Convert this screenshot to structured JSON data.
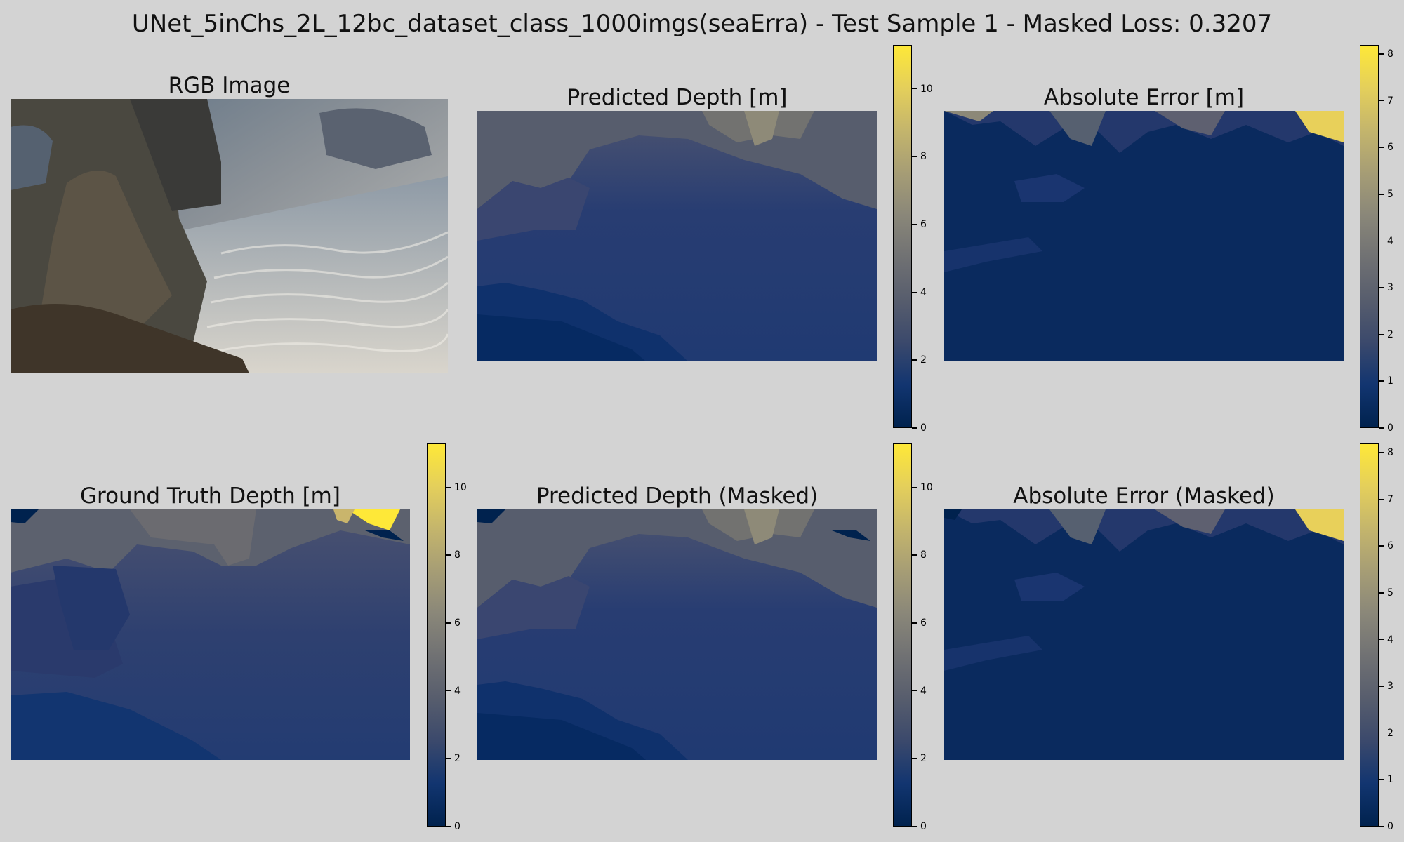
{
  "suptitle": "UNet_5inChs_2L_12bc_dataset_class_1000imgs(seaErra) - Test Sample 1 - Masked Loss: 0.3207",
  "colormap": {
    "name": "cividis",
    "stops": [
      "#00224e",
      "#123570",
      "#3b496c",
      "#575d6d",
      "#707173",
      "#8a8779",
      "#a69d75",
      "#c4b56c",
      "#e4cf5b",
      "#fee838"
    ]
  },
  "chart_data": [
    {
      "type": "heatmap",
      "title": "RGB Image",
      "content": "underwater photograph: rocks on the left, rippled sand seabed on the right"
    },
    {
      "type": "heatmap",
      "title": "Predicted Depth [m]",
      "colorbar": {
        "range": [
          0,
          11.3
        ],
        "ticks": [
          0,
          2,
          4,
          6,
          8,
          10
        ]
      }
    },
    {
      "type": "heatmap",
      "title": "Absolute Error [m]",
      "colorbar": {
        "range": [
          0,
          8.2
        ],
        "ticks": [
          0,
          1,
          2,
          3,
          4,
          5,
          6,
          7,
          8
        ]
      }
    },
    {
      "type": "heatmap",
      "title": "Ground Truth Depth [m]",
      "colorbar": {
        "range": [
          0,
          11.3
        ],
        "ticks": [
          0,
          2,
          4,
          6,
          8,
          10
        ]
      }
    },
    {
      "type": "heatmap",
      "title": "Predicted Depth (Masked)",
      "colorbar": {
        "range": [
          0,
          11.3
        ],
        "ticks": [
          0,
          2,
          4,
          6,
          8,
          10
        ]
      }
    },
    {
      "type": "heatmap",
      "title": "Absolute Error (Masked)",
      "colorbar": {
        "range": [
          0,
          8.2
        ],
        "ticks": [
          0,
          1,
          2,
          3,
          4,
          5,
          6,
          7,
          8
        ]
      }
    }
  ]
}
